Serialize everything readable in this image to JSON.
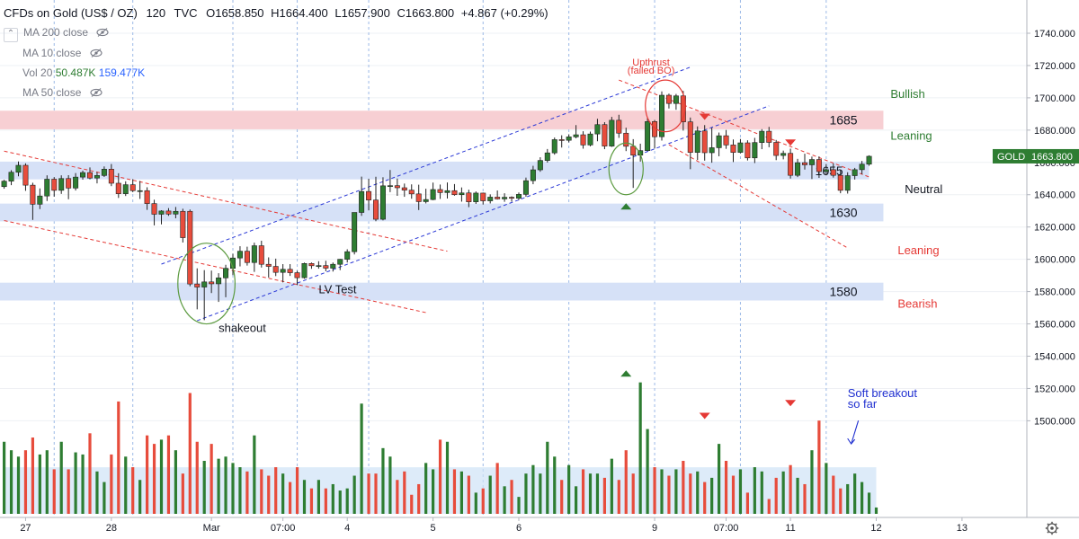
{
  "header": {
    "symbol": "CFDs on Gold (US$ / OZ)",
    "interval": "120",
    "source": "TVC",
    "open_label": "O",
    "open": "1658.850",
    "high_label": "H",
    "high": "1664.400",
    "low_label": "L",
    "low": "1657.900",
    "close_label": "C",
    "close": "1663.800",
    "change": "+4.867 (+0.29%)"
  },
  "indicators": {
    "collapse_icon": "chevron-up-icon",
    "ma200": "MA 200 close",
    "ma10": "MA 10 close",
    "vol_label": "Vol 20",
    "vol_a": "50.487K",
    "vol_b": "159.477K",
    "ma50": "MA 50 close"
  },
  "price_tag": {
    "symbol": "GOLD",
    "value": "1663.800",
    "color": "#2e7d32"
  },
  "colors": {
    "up": "#2e7d32",
    "down": "#e74c3c",
    "channel_blue": "#2b39d6",
    "channel_red": "#e53935",
    "zone_red": "#f7cfd3",
    "zone_blue": "#d6e1f7",
    "circle_red": "#e53935",
    "circle_green": "#5b9a3f",
    "grid": "#eef0f4"
  },
  "chart_data": {
    "type": "candlestick",
    "y_axis": {
      "min": 1495,
      "max": 1750,
      "ticks": [
        1500,
        1520,
        1540,
        1560,
        1580,
        1600,
        1620,
        1640,
        1660,
        1680,
        1700,
        1720,
        1740
      ]
    },
    "x_labels": [
      {
        "label": "27",
        "bar": 3
      },
      {
        "label": "28",
        "bar": 15
      },
      {
        "label": "Mar",
        "bar": 29
      },
      {
        "label": "07:00",
        "bar": 39
      },
      {
        "label": "4",
        "bar": 48
      },
      {
        "label": "5",
        "bar": 60
      },
      {
        "label": "6",
        "bar": 72
      },
      {
        "label": "9",
        "bar": 91
      },
      {
        "label": "07:00",
        "bar": 101
      },
      {
        "label": "11",
        "bar": 110
      },
      {
        "label": "12",
        "bar": 122
      },
      {
        "label": "13",
        "bar": 134
      }
    ],
    "vertical_dotted_bars": [
      7,
      18,
      32,
      41,
      51,
      67,
      79,
      91,
      103,
      115
    ],
    "ohlc": [
      [
        1645.0,
        1649.2,
        1643.7,
        1648.4
      ],
      [
        1648.4,
        1655.2,
        1645.9,
        1653.9
      ],
      [
        1653.9,
        1660.6,
        1651.4,
        1658.2
      ],
      [
        1658.2,
        1659.4,
        1642.4,
        1645.9
      ],
      [
        1645.9,
        1647.4,
        1624.4,
        1634.1
      ],
      [
        1634.1,
        1643.9,
        1631.1,
        1639.2
      ],
      [
        1639.2,
        1652.0,
        1636.1,
        1649.6
      ],
      [
        1649.6,
        1650.9,
        1638.8,
        1642.7
      ],
      [
        1642.7,
        1652.0,
        1640.5,
        1650.0
      ],
      [
        1650.0,
        1652.1,
        1637.2,
        1644.1
      ],
      [
        1644.1,
        1653.4,
        1642.6,
        1650.9
      ],
      [
        1650.9,
        1654.9,
        1649.3,
        1653.7
      ],
      [
        1653.7,
        1656.9,
        1649.5,
        1650.3
      ],
      [
        1650.3,
        1654.0,
        1647.0,
        1651.9
      ],
      [
        1651.9,
        1657.5,
        1651.0,
        1655.8
      ],
      [
        1655.8,
        1659.0,
        1645.3,
        1647.1
      ],
      [
        1647.1,
        1653.3,
        1638.0,
        1640.6
      ],
      [
        1640.6,
        1648.3,
        1639.2,
        1646.2
      ],
      [
        1646.2,
        1649.6,
        1641.6,
        1642.5
      ],
      [
        1642.5,
        1648.5,
        1637.4,
        1642.5
      ],
      [
        1642.5,
        1644.6,
        1630.6,
        1634.5
      ],
      [
        1634.5,
        1636.9,
        1621.0,
        1627.9
      ],
      [
        1627.9,
        1630.4,
        1621.6,
        1629.9
      ],
      [
        1629.9,
        1631.7,
        1626.9,
        1628.0
      ],
      [
        1628.0,
        1632.4,
        1625.4,
        1629.7
      ],
      [
        1629.7,
        1631.3,
        1610.4,
        1613.4
      ],
      [
        1629.7,
        1630.8,
        1583.3,
        1584.7
      ],
      [
        1584.7,
        1594.4,
        1569.0,
        1582.8
      ],
      [
        1582.8,
        1593.3,
        1562.3,
        1586.0
      ],
      [
        1586.0,
        1593.0,
        1579.1,
        1584.8
      ],
      [
        1584.8,
        1591.4,
        1573.6,
        1588.5
      ],
      [
        1588.5,
        1596.6,
        1576.5,
        1594.4
      ],
      [
        1594.4,
        1603.4,
        1590.2,
        1600.8
      ],
      [
        1600.8,
        1608.1,
        1595.6,
        1605.0
      ],
      [
        1605.0,
        1607.8,
        1596.1,
        1598.0
      ],
      [
        1598.0,
        1610.3,
        1592.2,
        1608.4
      ],
      [
        1608.4,
        1611.5,
        1594.9,
        1596.9
      ],
      [
        1596.9,
        1601.2,
        1588.7,
        1595.6
      ],
      [
        1595.6,
        1600.4,
        1589.6,
        1591.9
      ],
      [
        1591.9,
        1597.0,
        1585.7,
        1593.8
      ],
      [
        1593.8,
        1597.0,
        1589.7,
        1591.7
      ],
      [
        1591.7,
        1592.9,
        1584.0,
        1588.6
      ],
      [
        1588.6,
        1597.9,
        1588.0,
        1597.4
      ],
      [
        1597.4,
        1598.0,
        1594.1,
        1596.0
      ],
      [
        1596.0,
        1598.8,
        1594.2,
        1596.1
      ],
      [
        1596.1,
        1599.1,
        1592.6,
        1594.5
      ],
      [
        1594.5,
        1598.0,
        1592.4,
        1596.9
      ],
      [
        1596.9,
        1600.2,
        1593.3,
        1600.0
      ],
      [
        1600.0,
        1606.2,
        1598.0,
        1604.7
      ],
      [
        1604.7,
        1629.0,
        1603.0,
        1629.0
      ],
      [
        1629.0,
        1651.2,
        1626.9,
        1642.0
      ],
      [
        1642.0,
        1649.9,
        1630.3,
        1636.7
      ],
      [
        1636.7,
        1651.1,
        1623.6,
        1624.8
      ],
      [
        1624.8,
        1650.8,
        1624.1,
        1645.5
      ],
      [
        1645.5,
        1655.3,
        1641.6,
        1645.6
      ],
      [
        1645.6,
        1650.0,
        1639.3,
        1644.3
      ],
      [
        1644.3,
        1646.9,
        1638.7,
        1642.8
      ],
      [
        1642.8,
        1646.4,
        1637.5,
        1640.5
      ],
      [
        1640.5,
        1646.2,
        1630.5,
        1635.7
      ],
      [
        1635.7,
        1643.7,
        1634.6,
        1637.0
      ],
      [
        1637.0,
        1647.5,
        1636.6,
        1643.2
      ],
      [
        1643.2,
        1646.3,
        1637.4,
        1641.3
      ],
      [
        1641.3,
        1647.6,
        1637.6,
        1642.5
      ],
      [
        1642.5,
        1646.6,
        1639.4,
        1640.0
      ],
      [
        1640.0,
        1644.5,
        1635.7,
        1641.1
      ],
      [
        1641.1,
        1643.1,
        1632.3,
        1635.6
      ],
      [
        1635.6,
        1642.0,
        1634.3,
        1641.0
      ],
      [
        1641.0,
        1641.3,
        1633.9,
        1636.2
      ],
      [
        1636.2,
        1640.2,
        1634.6,
        1638.5
      ],
      [
        1638.5,
        1642.6,
        1637.0,
        1637.4
      ],
      [
        1637.4,
        1640.9,
        1635.6,
        1638.4
      ],
      [
        1638.4,
        1639.0,
        1635.7,
        1637.8
      ],
      [
        1637.8,
        1641.4,
        1636.7,
        1640.2
      ],
      [
        1640.2,
        1650.6,
        1638.7,
        1648.7
      ],
      [
        1648.7,
        1657.9,
        1646.5,
        1655.4
      ],
      [
        1655.4,
        1663.2,
        1654.2,
        1661.2
      ],
      [
        1661.2,
        1668.3,
        1659.9,
        1665.9
      ],
      [
        1665.9,
        1675.4,
        1664.8,
        1674.1
      ],
      [
        1674.1,
        1676.8,
        1669.2,
        1673.7
      ],
      [
        1673.7,
        1677.4,
        1672.4,
        1675.8
      ],
      [
        1675.8,
        1683.1,
        1674.9,
        1677.1
      ],
      [
        1677.1,
        1679.3,
        1668.5,
        1670.8
      ],
      [
        1670.8,
        1679.1,
        1670.0,
        1677.6
      ],
      [
        1677.6,
        1687.0,
        1673.1,
        1683.4
      ],
      [
        1683.4,
        1684.9,
        1668.2,
        1670.1
      ],
      [
        1670.1,
        1688.2,
        1669.6,
        1686.1
      ],
      [
        1686.1,
        1689.5,
        1675.2,
        1678.1
      ],
      [
        1678.1,
        1681.5,
        1667.0,
        1670.0
      ],
      [
        1670.0,
        1674.4,
        1644.2,
        1664.5
      ],
      [
        1664.5,
        1671.6,
        1660.5,
        1667.3
      ],
      [
        1667.3,
        1687.7,
        1667.2,
        1685.3
      ],
      [
        1685.3,
        1686.3,
        1668.6,
        1675.9
      ],
      [
        1675.9,
        1704.0,
        1673.5,
        1701.6
      ],
      [
        1701.6,
        1702.6,
        1693.4,
        1696.5
      ],
      [
        1696.5,
        1702.4,
        1692.6,
        1701.2
      ],
      [
        1701.2,
        1704.3,
        1679.7,
        1685.1
      ],
      [
        1685.1,
        1687.8,
        1655.8,
        1666.2
      ],
      [
        1666.2,
        1682.3,
        1661.5,
        1679.5
      ],
      [
        1679.5,
        1683.1,
        1661.1,
        1666.0
      ],
      [
        1666.0,
        1681.5,
        1659.8,
        1669.1
      ],
      [
        1669.1,
        1678.5,
        1663.8,
        1676.5
      ],
      [
        1676.5,
        1680.1,
        1668.4,
        1670.8
      ],
      [
        1670.8,
        1674.2,
        1660.2,
        1666.2
      ],
      [
        1666.2,
        1674.5,
        1665.6,
        1672.1
      ],
      [
        1672.1,
        1673.7,
        1661.2,
        1662.8
      ],
      [
        1662.8,
        1675.2,
        1659.6,
        1672.3
      ],
      [
        1672.3,
        1680.6,
        1668.2,
        1679.3
      ],
      [
        1679.3,
        1682.0,
        1669.4,
        1672.4
      ],
      [
        1672.4,
        1673.9,
        1661.4,
        1664.3
      ],
      [
        1664.3,
        1667.3,
        1661.9,
        1665.6
      ],
      [
        1665.6,
        1668.5,
        1650.0,
        1652.0
      ],
      [
        1652.0,
        1662.2,
        1650.9,
        1659.8
      ],
      [
        1659.8,
        1665.4,
        1655.6,
        1658.5
      ],
      [
        1658.5,
        1663.6,
        1649.7,
        1661.8
      ],
      [
        1661.8,
        1663.7,
        1650.4,
        1654.3
      ],
      [
        1654.3,
        1659.0,
        1652.0,
        1655.5
      ],
      [
        1655.5,
        1659.3,
        1650.6,
        1652.0
      ],
      [
        1652.0,
        1655.4,
        1640.9,
        1642.7
      ],
      [
        1642.7,
        1653.9,
        1640.7,
        1651.8
      ],
      [
        1651.8,
        1656.6,
        1649.4,
        1655.5
      ],
      [
        1655.5,
        1660.9,
        1652.7,
        1658.9
      ],
      [
        1658.9,
        1664.4,
        1657.9,
        1663.8
      ]
    ],
    "volume": [
      34,
      30,
      27,
      30,
      36,
      28,
      30,
      21,
      34,
      21,
      29,
      28,
      38,
      20,
      15,
      28,
      53,
      27,
      22,
      16,
      37,
      33,
      35,
      37,
      30,
      19,
      57,
      34,
      25,
      33,
      26,
      27,
      24,
      22,
      20,
      37,
      21,
      18,
      22,
      19,
      15,
      22,
      16,
      12,
      16,
      12,
      14,
      11,
      12,
      18,
      52,
      19,
      19,
      31,
      27,
      16,
      20,
      9,
      14,
      24,
      21,
      35,
      34,
      21,
      20,
      18,
      10,
      12,
      18,
      24,
      13,
      16,
      8,
      19,
      23,
      19,
      34,
      27,
      16,
      23,
      13,
      21,
      19,
      19,
      17,
      26,
      16,
      30,
      19,
      62,
      40,
      22,
      21,
      18,
      21,
      25,
      19,
      20,
      15,
      17,
      33,
      25,
      18,
      21,
      10,
      22,
      20,
      7,
      17,
      20,
      23,
      17,
      14,
      30,
      44,
      24,
      18,
      12,
      14,
      19,
      15,
      10,
      3
    ],
    "volume_range": [
      0,
      70
    ],
    "ma20_volume": [
      22,
      22,
      22,
      22,
      22,
      22,
      22,
      22,
      22,
      22,
      22,
      22,
      22,
      22,
      22,
      22,
      22,
      22,
      22,
      22,
      22,
      22,
      22,
      22,
      22,
      22,
      22,
      22,
      22,
      22,
      22,
      22,
      22,
      22,
      22,
      22,
      22,
      22,
      22,
      22,
      22,
      22,
      22,
      22,
      22,
      22,
      22,
      22,
      22,
      22,
      22,
      22,
      22,
      22,
      22,
      22,
      22,
      22,
      22,
      22,
      22,
      22,
      22,
      22,
      22,
      22,
      22,
      22,
      22,
      22,
      22,
      22,
      22,
      22,
      22,
      22,
      22,
      22,
      22,
      22,
      22,
      22,
      22,
      22,
      22,
      22,
      22,
      22,
      22,
      22,
      22,
      22,
      22,
      22,
      22,
      22,
      22,
      22,
      22,
      22,
      22,
      22,
      22,
      22,
      22,
      22,
      22,
      22,
      22,
      22,
      22,
      22,
      22,
      22,
      22,
      22,
      22,
      22,
      22,
      22,
      22,
      22,
      22
    ],
    "zones": [
      {
        "low": 1680.5,
        "high": 1692.0,
        "label": "1685",
        "color": "red",
        "end_bar": 123
      },
      {
        "low": 1649.5,
        "high": 1660.5,
        "label": "1655",
        "color": "blue",
        "end_bar": 121
      },
      {
        "low": 1623.5,
        "high": 1634.5,
        "label": "1630",
        "color": "blue",
        "end_bar": 123
      },
      {
        "low": 1574.5,
        "high": 1585.5,
        "label": "1580",
        "color": "blue",
        "end_bar": 123
      }
    ],
    "lines": [
      {
        "name": "blue-channel-upper",
        "color": "blue",
        "p1": [
          22,
          1597.0
        ],
        "p2": [
          96,
          1719.0
        ]
      },
      {
        "name": "blue-channel-lower",
        "color": "blue",
        "p1": [
          27,
          1562.0
        ],
        "p2": [
          107,
          1695.0
        ]
      },
      {
        "name": "red-down-upper",
        "color": "red",
        "p1": [
          0,
          1667.0
        ],
        "p2": [
          62,
          1605.0
        ]
      },
      {
        "name": "red-down-lower",
        "color": "red",
        "p1": [
          0,
          1624.0
        ],
        "p2": [
          59,
          1567.0
        ]
      },
      {
        "name": "red-short-upper",
        "color": "red",
        "p1": [
          86,
          1711.0
        ],
        "p2": [
          121,
          1651.0
        ]
      },
      {
        "name": "red-short-lower",
        "color": "red",
        "p1": [
          93,
          1671.0
        ],
        "p2": [
          118,
          1607.0
        ]
      }
    ],
    "circles": [
      {
        "name": "shakeout-circle",
        "bar": 28.3,
        "price": 1585.0,
        "rx": 4.0,
        "ry": 25.0,
        "color": "green"
      },
      {
        "name": "upthrust-circle",
        "bar": 92.5,
        "price": 1695.0,
        "rx": 2.8,
        "ry": 16.0,
        "color": "red"
      },
      {
        "name": "spring-circle",
        "bar": 87.0,
        "price": 1656.0,
        "rx": 2.4,
        "ry": 16.0,
        "color": "green"
      }
    ],
    "markers": [
      {
        "type": "down",
        "bar": 98,
        "price": 1688.0,
        "pane": "price"
      },
      {
        "type": "down",
        "bar": 110,
        "price": 1672.0,
        "pane": "price"
      },
      {
        "type": "up",
        "bar": 87,
        "price": 1632.5,
        "pane": "price"
      },
      {
        "type": "up",
        "bar": 87,
        "volume": 66,
        "pane": "volume"
      },
      {
        "type": "down",
        "bar": 98,
        "volume": 46,
        "pane": "volume"
      },
      {
        "type": "down",
        "bar": 110,
        "volume": 52,
        "pane": "volume"
      }
    ],
    "annotations": [
      {
        "text": "Upthrust",
        "bar": 90.5,
        "price": 1720.0,
        "color": "red"
      },
      {
        "text": "(failed BO)",
        "bar": 90.5,
        "price": 1715.0,
        "color": "red"
      },
      {
        "text": "Bullish",
        "bar": 124,
        "price": 1700.0,
        "color": "green"
      },
      {
        "text": "Leaning",
        "bar": 124,
        "price": 1674.0,
        "color": "green"
      },
      {
        "text": "Neutral",
        "bar": 126,
        "price": 1641.0,
        "color": "dark"
      },
      {
        "text": "Leaning",
        "bar": 125,
        "price": 1603.0,
        "color": "red"
      },
      {
        "text": "Bearish",
        "bar": 125,
        "price": 1570.0,
        "color": "red"
      },
      {
        "text": "LV Test",
        "bar": 44,
        "price": 1579.0,
        "color": "dark"
      },
      {
        "text": "shakeout",
        "bar": 30,
        "price": 1555.0,
        "color": "dark"
      },
      {
        "text": "Soft breakout",
        "bar": 118,
        "volume": 55,
        "color": "blue"
      },
      {
        "text": "so far",
        "bar": 118,
        "volume": 50,
        "color": "blue"
      }
    ],
    "soft_breakout_arrow": {
      "from_bar": 119.5,
      "from_volume": 44,
      "to_bar": 118.5,
      "to_volume": 33
    }
  }
}
